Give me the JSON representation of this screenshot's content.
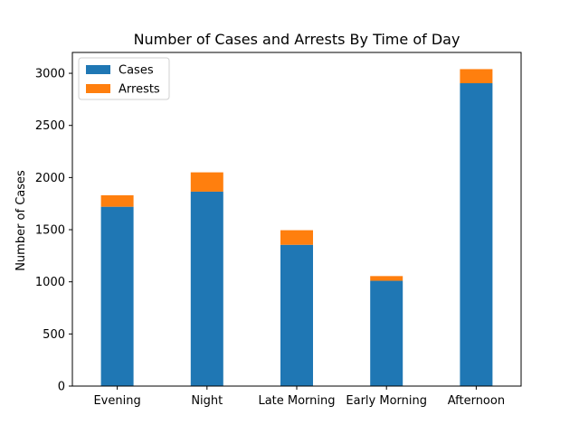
{
  "chart_data": {
    "type": "bar",
    "stacked": true,
    "title": "Number of Cases and Arrests By Time of Day",
    "xlabel": "",
    "ylabel": "Number of Cases",
    "categories": [
      "Evening",
      "Night",
      "Late Morning",
      "Early Morning",
      "Afternoon"
    ],
    "series": [
      {
        "name": "Cases",
        "values": [
          1720,
          1865,
          1355,
          1010,
          2905
        ],
        "color": "#1f77b4"
      },
      {
        "name": "Arrests",
        "values": [
          110,
          185,
          140,
          45,
          135
        ],
        "color": "#ff7f0e"
      }
    ],
    "ylim": [
      0,
      3200
    ],
    "yticks": [
      0,
      500,
      1000,
      1500,
      2000,
      2500,
      3000
    ],
    "legend": "top-left",
    "grid": false
  }
}
